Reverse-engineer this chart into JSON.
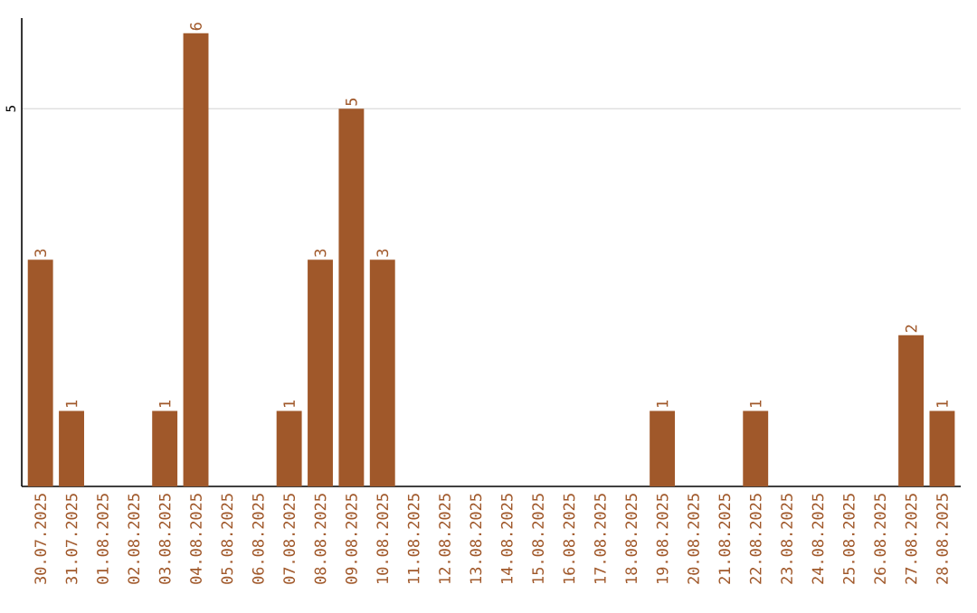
{
  "chart_data": {
    "type": "bar",
    "categories": [
      "30.07.2025",
      "31.07.2025",
      "01.08.2025",
      "02.08.2025",
      "03.08.2025",
      "04.08.2025",
      "05.08.2025",
      "06.08.2025",
      "07.08.2025",
      "08.08.2025",
      "09.08.2025",
      "10.08.2025",
      "11.08.2025",
      "12.08.2025",
      "13.08.2025",
      "14.08.2025",
      "15.08.2025",
      "16.08.2025",
      "17.08.2025",
      "18.08.2025",
      "19.08.2025",
      "20.08.2025",
      "21.08.2025",
      "22.08.2025",
      "23.08.2025",
      "24.08.2025",
      "25.08.2025",
      "26.08.2025",
      "27.08.2025",
      "28.08.2025"
    ],
    "values": [
      3,
      1,
      0,
      0,
      1,
      6,
      0,
      0,
      1,
      3,
      5,
      3,
      0,
      0,
      0,
      0,
      0,
      0,
      0,
      0,
      1,
      0,
      0,
      1,
      0,
      0,
      0,
      0,
      2,
      1
    ],
    "value_labels": [
      "3",
      "1",
      null,
      null,
      "1",
      "6",
      null,
      null,
      "1",
      "3",
      "5",
      "3",
      null,
      null,
      null,
      null,
      null,
      null,
      null,
      null,
      "1",
      null,
      null,
      "1",
      null,
      null,
      null,
      null,
      "2",
      "1"
    ],
    "color": "#a0582a",
    "ylim": [
      0,
      6.2
    ],
    "yticks": [
      5
    ],
    "grid": "y"
  }
}
